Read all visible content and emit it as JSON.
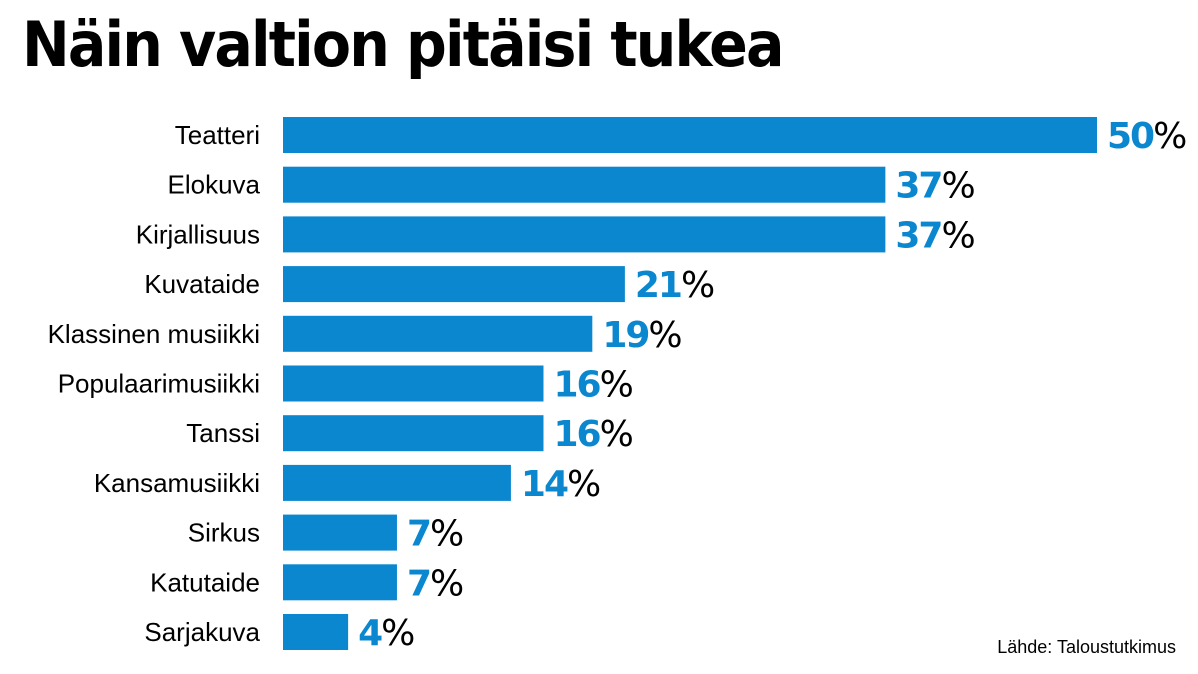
{
  "title": "Näin valtion pitäisi tukea",
  "source": "Lähde: Taloustutkimus",
  "colors": {
    "bar": "#0a87cf",
    "value": "#0a87cf",
    "text": "#000000"
  },
  "chart_data": {
    "type": "bar",
    "orientation": "horizontal",
    "title": "Näin valtion pitäisi tukea",
    "unit": "%",
    "categories": [
      "Teatteri",
      "Elokuva",
      "Kirjallisuus",
      "Kuvataide",
      "Klassinen musiikki",
      "Populaarimusiikki",
      "Tanssi",
      "Kansamusiikki",
      "Sirkus",
      "Katutaide",
      "Sarjakuva"
    ],
    "values": [
      50,
      37,
      37,
      21,
      19,
      16,
      16,
      14,
      7,
      7,
      4
    ],
    "xlim": [
      0,
      50
    ],
    "xlabel": "",
    "ylabel": "",
    "grid": false
  }
}
